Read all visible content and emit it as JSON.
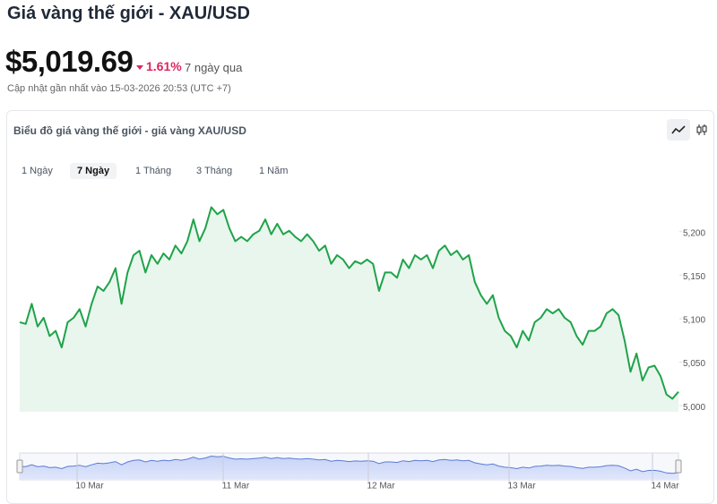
{
  "header": {
    "title": "Giá vàng thế giới - XAU/USD",
    "price": "$5,019.69",
    "change": "1.61%",
    "period": "7 ngày qua",
    "updated": "Cập nhật gần nhất vào 15-03-2026 20:53 (UTC +7)"
  },
  "card": {
    "title": "Biểu đồ giá vàng thế giới - giá vàng XAU/USD",
    "tabs": [
      "1 Ngày",
      "7 Ngày",
      "1 Tháng",
      "3 Tháng",
      "1 Năm"
    ],
    "active_tab": 1
  },
  "chart_data": {
    "type": "area-line",
    "color": "#1fa34a",
    "values": [
      5096,
      5094,
      5117,
      5091,
      5101,
      5080,
      5086,
      5067,
      5096,
      5101,
      5111,
      5091,
      5117,
      5137,
      5132,
      5142,
      5158,
      5117,
      5153,
      5173,
      5178,
      5153,
      5173,
      5163,
      5175,
      5168,
      5184,
      5175,
      5189,
      5214,
      5189,
      5204,
      5228,
      5220,
      5225,
      5204,
      5189,
      5194,
      5189,
      5197,
      5201,
      5214,
      5197,
      5209,
      5197,
      5201,
      5194,
      5189,
      5197,
      5189,
      5178,
      5184,
      5163,
      5173,
      5168,
      5158,
      5166,
      5163,
      5168,
      5163,
      5132,
      5153,
      5153,
      5147,
      5168,
      5158,
      5173,
      5168,
      5173,
      5158,
      5178,
      5184,
      5173,
      5178,
      5168,
      5173,
      5142,
      5127,
      5117,
      5127,
      5101,
      5086,
      5080,
      5067,
      5086,
      5075,
      5096,
      5101,
      5111,
      5106,
      5111,
      5101,
      5096,
      5080,
      5070,
      5086,
      5086,
      5091,
      5106,
      5111,
      5104,
      5075,
      5039,
      5060,
      5029,
      5044,
      5046,
      5034,
      5013,
      5008,
      5016
    ],
    "ylim": [
      4993,
      5245
    ],
    "yticks": [
      {
        "value": 5000,
        "label": "5,000"
      },
      {
        "value": 5050,
        "label": "5,050"
      },
      {
        "value": 5100,
        "label": "5,100"
      },
      {
        "value": 5150,
        "label": "5,150"
      },
      {
        "value": 5200,
        "label": "5,200"
      }
    ],
    "navigator_labels": [
      "10 Mar",
      "11 Mar",
      "12 Mar",
      "13 Mar",
      "14 Mar"
    ]
  }
}
